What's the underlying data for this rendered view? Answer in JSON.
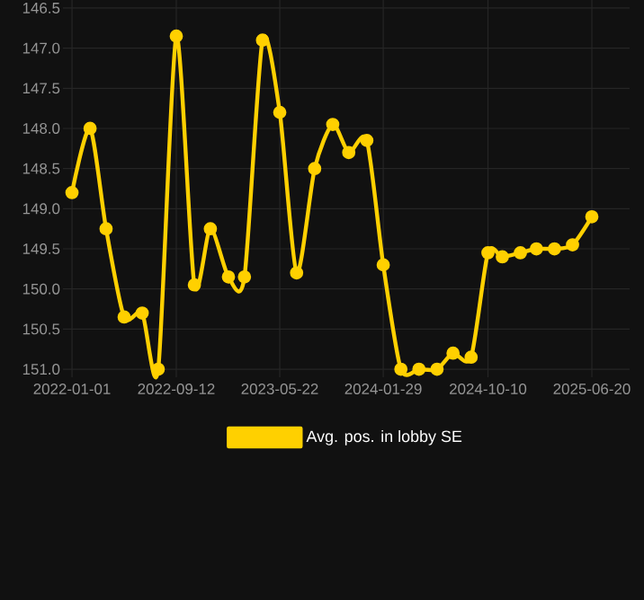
{
  "chart_data": {
    "type": "line",
    "x": [
      "2022-01-01",
      "2022-02-14",
      "2022-03-25",
      "2022-05-08",
      "2022-06-21",
      "2022-07-30",
      "2022-09-12",
      "2022-10-26",
      "2022-12-04",
      "2023-01-17",
      "2023-02-25",
      "2023-04-10",
      "2023-05-22",
      "2023-07-02",
      "2023-08-15",
      "2023-09-28",
      "2023-11-06",
      "2023-12-20",
      "2024-01-29",
      "2024-03-12",
      "2024-04-25",
      "2024-06-08",
      "2024-07-17",
      "2024-08-30",
      "2024-10-10",
      "2024-11-14",
      "2024-12-28",
      "2025-02-05",
      "2025-03-21",
      "2025-05-04",
      "2025-06-20"
    ],
    "series": [
      {
        "name": "Avg. pos. in lobby SE",
        "color": "#ffd000",
        "values": [
          148.8,
          148.0,
          149.25,
          150.35,
          150.3,
          151.0,
          146.85,
          149.95,
          149.25,
          149.85,
          149.85,
          146.9,
          147.8,
          149.8,
          148.5,
          147.95,
          148.3,
          148.15,
          149.7,
          151.0,
          151.0,
          151.0,
          150.8,
          150.85,
          149.55,
          149.6,
          149.55,
          149.5,
          149.5,
          149.45,
          149.1
        ]
      }
    ],
    "xlim": [
      "2021-12-10",
      "2025-09-20"
    ],
    "xticks": [
      "2022-01-01",
      "2022-09-12",
      "2023-05-22",
      "2024-01-29",
      "2024-10-10",
      "2025-06-20"
    ],
    "ylim": [
      151.1,
      146.4
    ],
    "yticks": [
      {
        "value": 146.5,
        "label": "146.5"
      },
      {
        "value": 147,
        "label": "147.0"
      },
      {
        "value": 147.5,
        "label": "147.5"
      },
      {
        "value": 148,
        "label": "148.0"
      },
      {
        "value": 148.5,
        "label": "148.5"
      },
      {
        "value": 149,
        "label": "149.0"
      },
      {
        "value": 149.5,
        "label": "149.5"
      },
      {
        "value": 150,
        "label": "150.0"
      },
      {
        "value": 150.5,
        "label": "150.5"
      },
      {
        "value": 151,
        "label": "151.0"
      }
    ],
    "grid": true,
    "legend": "bottom",
    "marker": "circle",
    "line_style": "solid"
  }
}
